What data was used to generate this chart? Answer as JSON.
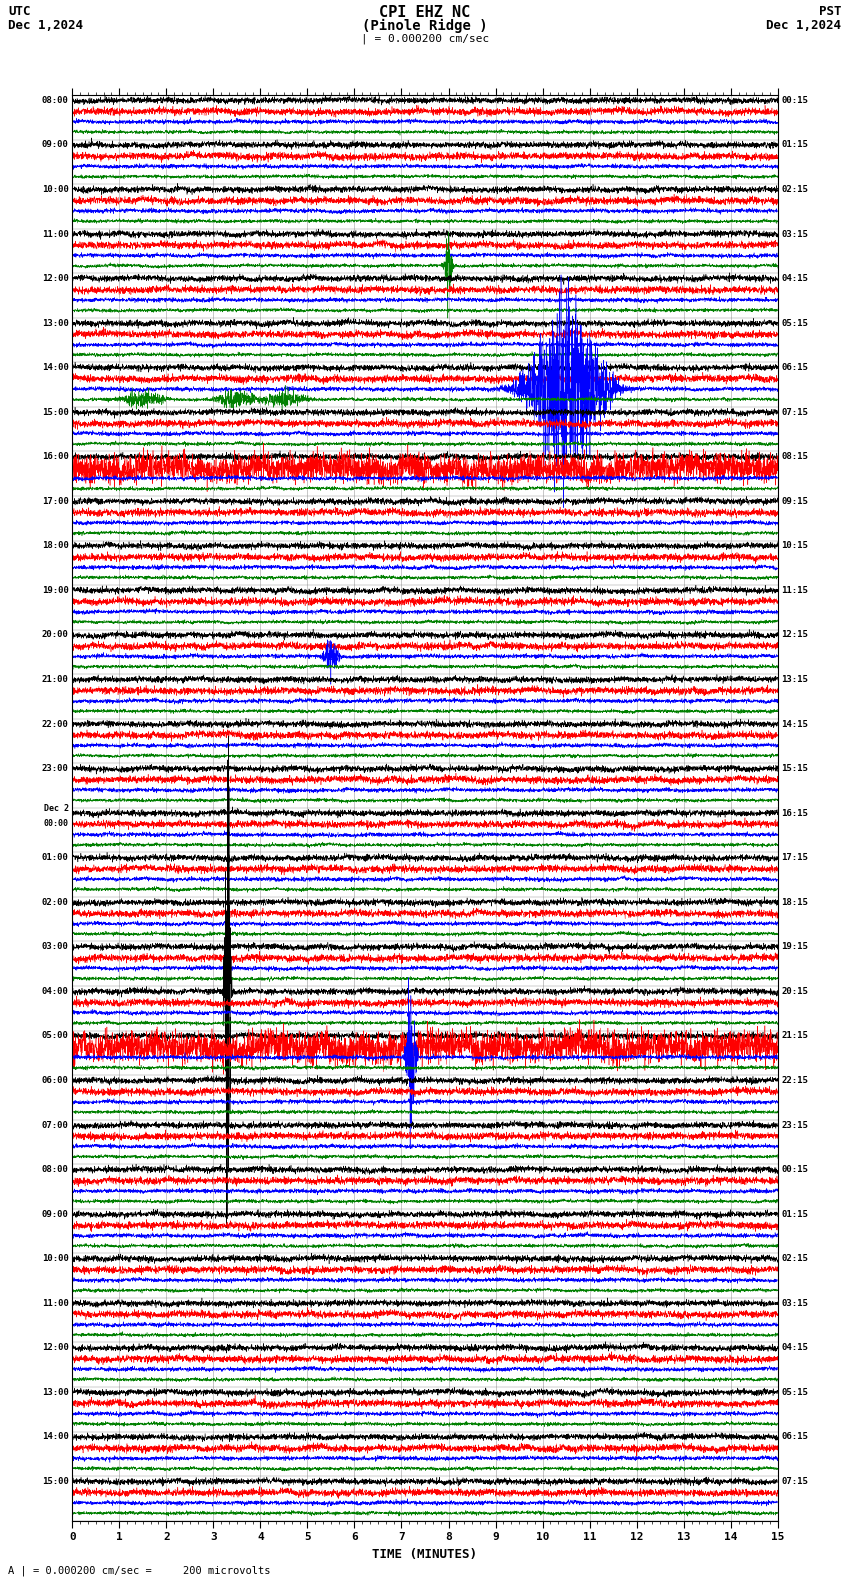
{
  "title_line1": "CPI EHZ NC",
  "title_line2": "(Pinole Ridge )",
  "scale_label": "| = 0.000200 cm/sec",
  "utc_label": "UTC",
  "utc_date": "Dec 1,2024",
  "pst_label": "PST",
  "pst_date": "Dec 1,2024",
  "footer_label": "A | = 0.000200 cm/sec =     200 microvolts",
  "xlabel": "TIME (MINUTES)",
  "background_color": "#ffffff",
  "trace_colors": [
    "black",
    "red",
    "blue",
    "green"
  ],
  "grid_color": "#777777",
  "num_rows": 32,
  "traces_per_row": 4,
  "left_labels_utc": [
    "08:00",
    "09:00",
    "10:00",
    "11:00",
    "12:00",
    "13:00",
    "14:00",
    "15:00",
    "16:00",
    "17:00",
    "18:00",
    "19:00",
    "20:00",
    "21:00",
    "22:00",
    "23:00",
    "Dec 2\n00:00",
    "01:00",
    "02:00",
    "03:00",
    "04:00",
    "05:00",
    "06:00",
    "07:00",
    "08:00",
    "09:00",
    "10:00",
    "11:00",
    "12:00",
    "13:00",
    "14:00",
    "15:00"
  ],
  "right_labels_pst": [
    "00:15",
    "01:15",
    "02:15",
    "03:15",
    "04:15",
    "05:15",
    "06:15",
    "07:15",
    "08:15",
    "09:15",
    "10:15",
    "11:15",
    "12:15",
    "13:15",
    "14:15",
    "15:15",
    "16:15",
    "17:15",
    "18:15",
    "19:15",
    "20:15",
    "21:15",
    "22:15",
    "23:15",
    "00:15",
    "01:15",
    "02:15",
    "03:15",
    "04:15",
    "05:15",
    "06:15",
    "07:15"
  ],
  "noise_seed": 42
}
